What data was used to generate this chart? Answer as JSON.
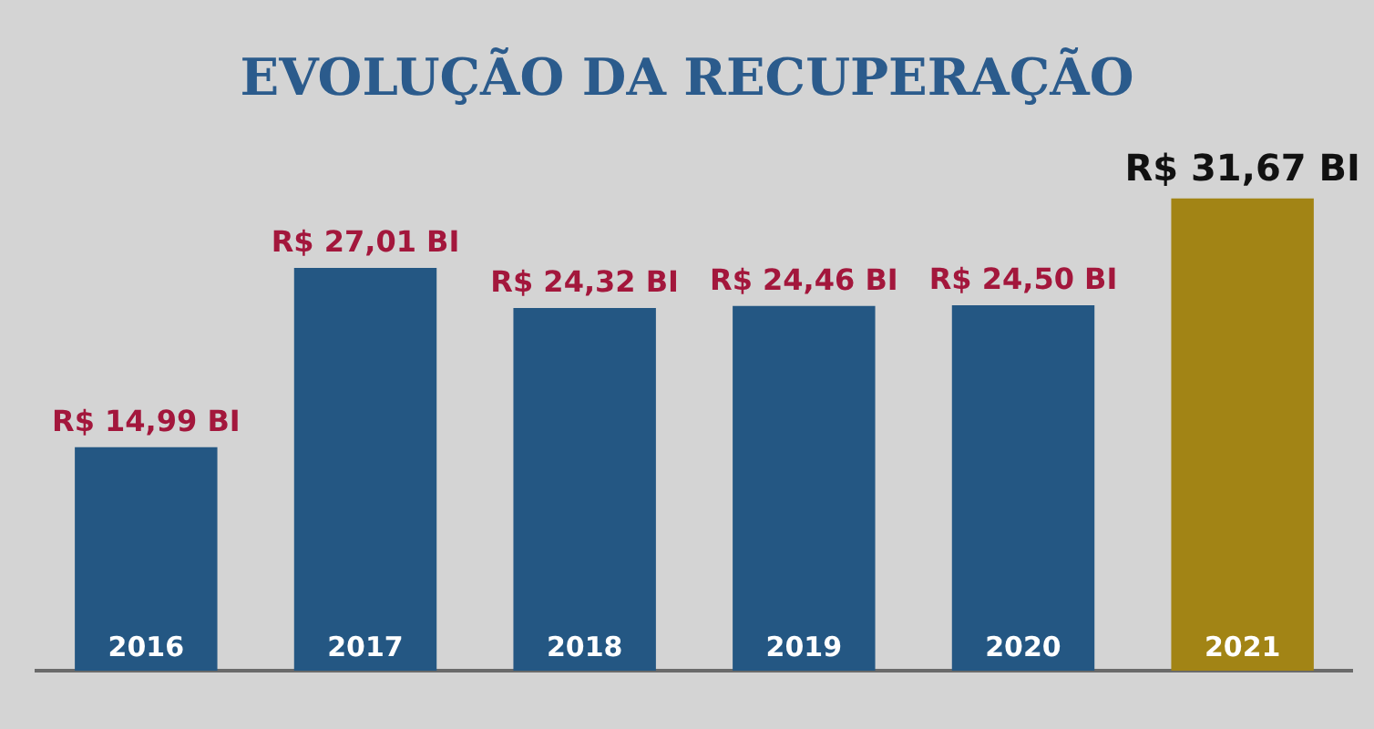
{
  "chart_data": {
    "type": "bar",
    "title": "EVOLUÇÃO DA RECUPERAÇÃO",
    "categories": [
      "2016",
      "2017",
      "2018",
      "2019",
      "2020",
      "2021"
    ],
    "values": [
      14.99,
      27.01,
      24.32,
      24.46,
      24.5,
      31.67
    ],
    "colors": [
      "#245783",
      "#245783",
      "#245783",
      "#245783",
      "#245783",
      "#a28415"
    ],
    "value_labels": [
      "R$ 14,99 BI",
      "R$ 27,01 BI",
      "R$ 24,32 BI",
      "R$ 24,46 BI",
      "R$ 24,50 BI",
      "R$ 31,67 BI"
    ],
    "relative": false,
    "grid": false,
    "legend": false
  }
}
